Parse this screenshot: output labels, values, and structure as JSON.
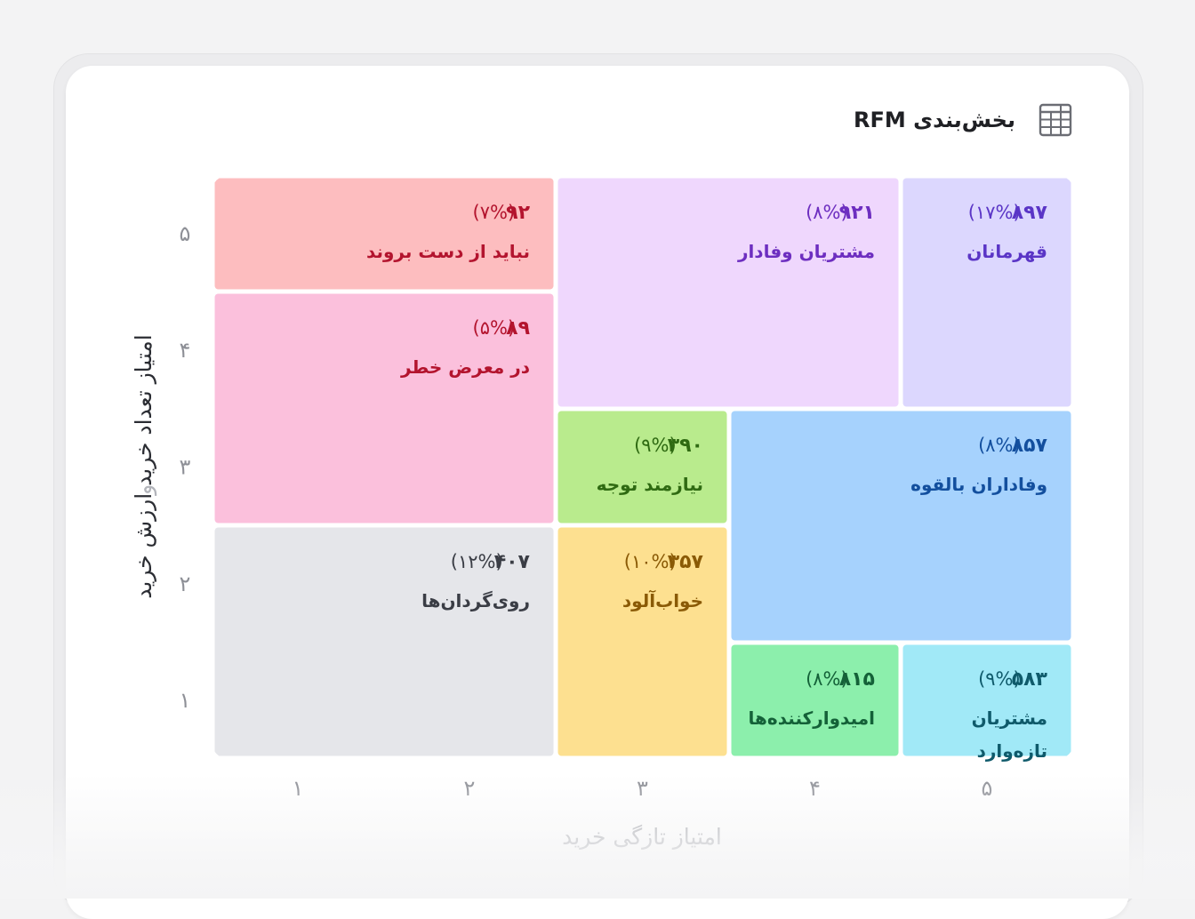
{
  "header": {
    "title": "بخش‌بندی RFM",
    "icon": "grid-table-icon"
  },
  "chart_data": {
    "type": "heatmap",
    "title": "بخش‌بندی RFM",
    "xlabel": "امتیاز تازگی خرید",
    "ylabel": {
      "part1": "امتیاز تعداد خرید",
      "connector": "و",
      "part2": "ارزش خرید"
    },
    "x_ticks": [
      "۱",
      "۲",
      "۳",
      "۴",
      "۵"
    ],
    "y_ticks": [
      "۱",
      "۲",
      "۳",
      "۴",
      "۵"
    ],
    "x_range": [
      1,
      5
    ],
    "y_range": [
      1,
      5
    ],
    "grid": false,
    "segments": [
      {
        "key": "cant_lose",
        "label": "نباید از دست بروند",
        "count": "۹۲",
        "percent": "(۷%)",
        "x": [
          1,
          2
        ],
        "y": [
          5,
          5
        ],
        "fill": "#fdbdbf",
        "text_color": "#b3142e"
      },
      {
        "key": "at_risk",
        "label": "در معرض خطر",
        "count": "۸۹",
        "percent": "(۵%)",
        "x": [
          1,
          2
        ],
        "y": [
          3,
          4
        ],
        "fill": "#fbc0dc",
        "text_color": "#b3142e"
      },
      {
        "key": "hibernating",
        "label": "روی‌گردان‌ها",
        "count": "۴۰۷",
        "percent": "(۱۲%)",
        "x": [
          1,
          2
        ],
        "y": [
          1,
          2
        ],
        "fill": "#e5e6ea",
        "text_color": "#3a3d45"
      },
      {
        "key": "loyal",
        "label": "مشتریان وفادار",
        "count": "۹۲۱",
        "percent": "(۸%)",
        "x": [
          3,
          4
        ],
        "y": [
          4,
          5
        ],
        "fill": "#efd7fd",
        "text_color": "#6d2ec0"
      },
      {
        "key": "champions",
        "label": "قهرمانان",
        "count": "۸۹۷",
        "percent": "(۱۷%)",
        "x": [
          5,
          5
        ],
        "y": [
          4,
          5
        ],
        "fill": "#dcd7fe",
        "text_color": "#5a35c6"
      },
      {
        "key": "need_attention",
        "label": "نیازمند توجه",
        "count": "۳۹۰",
        "percent": "(۹%)",
        "x": [
          3,
          3
        ],
        "y": [
          3,
          3
        ],
        "fill": "#b9eb8d",
        "text_color": "#2f6a12"
      },
      {
        "key": "potential_loyalist",
        "label": "وفاداران بالقوه",
        "count": "۸۵۷",
        "percent": "(۸%)",
        "x": [
          4,
          5
        ],
        "y": [
          2,
          3
        ],
        "fill": "#a6d2fd",
        "text_color": "#134f9e"
      },
      {
        "key": "about_to_sleep",
        "label": "خواب‌آلود",
        "count": "۳۵۷",
        "percent": "(۱۰%)",
        "x": [
          3,
          3
        ],
        "y": [
          1,
          2
        ],
        "fill": "#fde090",
        "text_color": "#8a5a06"
      },
      {
        "key": "promising",
        "label": "امیدوارکننده‌ها",
        "count": "۸۱۵",
        "percent": "(۸%)",
        "x": [
          4,
          4
        ],
        "y": [
          1,
          1
        ],
        "fill": "#8cefac",
        "text_color": "#146138"
      },
      {
        "key": "new_customers",
        "label": "مشتریان تازه‌وارد",
        "count": "۵۸۳",
        "percent": "(۹%)",
        "x": [
          5,
          5
        ],
        "y": [
          1,
          1
        ],
        "fill": "#a1e9f7",
        "text_color": "#0f5a6b"
      }
    ]
  }
}
